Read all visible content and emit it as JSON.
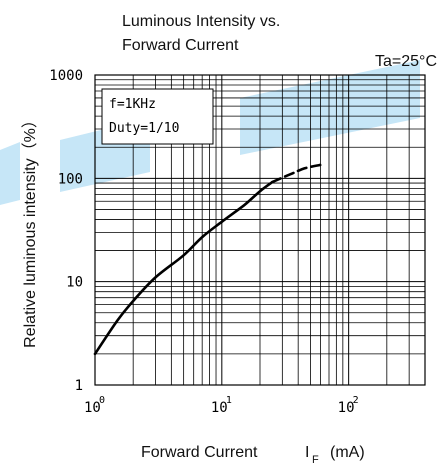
{
  "chart_data": {
    "type": "line",
    "title_line1": "Luminous Intensity vs.",
    "title_line2": "Forward Current",
    "condition": "Ta=25°C",
    "annotation_line1": "f=1KHz",
    "annotation_line2": "Duty=1/10",
    "xlabel": "Forward Current",
    "xlabel_symbol": "I",
    "xlabel_subscript": "F",
    "xlabel_unit": "(mA)",
    "ylabel": "Relative luminous intensity（%）",
    "x_scale": "log",
    "y_scale": "log",
    "xlim": [
      1,
      400
    ],
    "ylim": [
      1,
      1000
    ],
    "x_tick_labels": [
      {
        "base": "10",
        "exp": "0",
        "value": 1
      },
      {
        "base": "10",
        "exp": "1",
        "value": 10
      },
      {
        "base": "10",
        "exp": "2",
        "value": 100
      }
    ],
    "y_tick_labels": [
      {
        "label": "1",
        "value": 1
      },
      {
        "label": "10",
        "value": 10
      },
      {
        "label": "100",
        "value": 100
      },
      {
        "label": "1000",
        "value": 1000
      }
    ],
    "grid": true,
    "series": [
      {
        "style": "solid",
        "color": "#000000",
        "points": [
          [
            1,
            2.0
          ],
          [
            1.5,
            4.2
          ],
          [
            2,
            6.5
          ],
          [
            3,
            11
          ],
          [
            5,
            18
          ],
          [
            7,
            27
          ],
          [
            10,
            38
          ],
          [
            15,
            55
          ],
          [
            20,
            75
          ],
          [
            25,
            92
          ]
        ]
      },
      {
        "style": "dashed",
        "color": "#000000",
        "points": [
          [
            25,
            92
          ],
          [
            35,
            110
          ],
          [
            45,
            125
          ],
          [
            60,
            135
          ]
        ]
      }
    ],
    "watermark_color": "#c6e6f7"
  }
}
